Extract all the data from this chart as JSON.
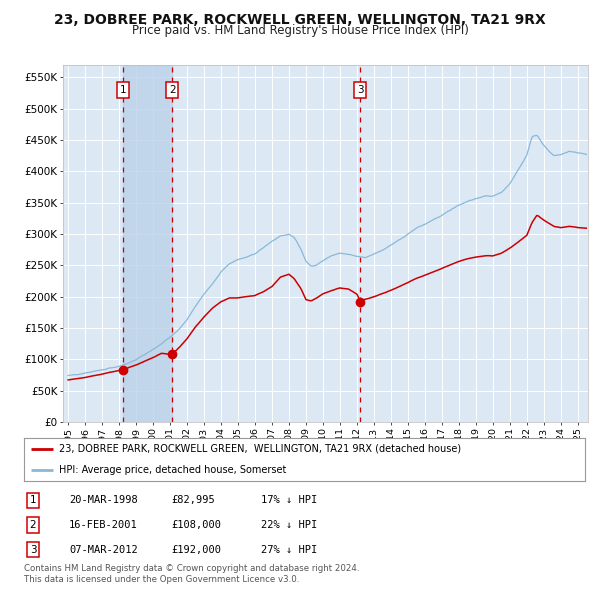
{
  "title": "23, DOBREE PARK, ROCKWELL GREEN, WELLINGTON, TA21 9RX",
  "subtitle": "Price paid vs. HM Land Registry's House Price Index (HPI)",
  "title_fontsize": 10,
  "subtitle_fontsize": 8.5,
  "ylim": [
    0,
    570000
  ],
  "xlim_start": 1994.7,
  "xlim_end": 2025.6,
  "background_color": "#ffffff",
  "plot_bg_color": "#dce9f5",
  "grid_color": "#ffffff",
  "red_line_color": "#cc0000",
  "blue_line_color": "#8ab8d8",
  "sale_marker_color": "#cc0000",
  "dashed_line_color": "#cc0000",
  "shade_color": "#b8cfe8",
  "legend_label_red": "23, DOBREE PARK, ROCKWELL GREEN,  WELLINGTON, TA21 9RX (detached house)",
  "legend_label_blue": "HPI: Average price, detached house, Somerset",
  "sale_dates_decimal": [
    1998.22,
    2001.12,
    2012.18
  ],
  "sale_prices": [
    82995,
    108000,
    192000
  ],
  "sale_labels": [
    "1",
    "2",
    "3"
  ],
  "footer_line1": "Contains HM Land Registry data © Crown copyright and database right 2024.",
  "footer_line2": "This data is licensed under the Open Government Licence v3.0.",
  "table_data": [
    [
      "1",
      "20-MAR-1998",
      "£82,995",
      "17% ↓ HPI"
    ],
    [
      "2",
      "16-FEB-2001",
      "£108,000",
      "22% ↓ HPI"
    ],
    [
      "3",
      "07-MAR-2012",
      "£192,000",
      "27% ↓ HPI"
    ]
  ],
  "yticks": [
    0,
    50000,
    100000,
    150000,
    200000,
    250000,
    300000,
    350000,
    400000,
    450000,
    500000,
    550000
  ],
  "yticklabels": [
    "£0",
    "£50K",
    "£100K",
    "£150K",
    "£200K",
    "£250K",
    "£300K",
    "£350K",
    "£400K",
    "£450K",
    "£500K",
    "£550K"
  ]
}
